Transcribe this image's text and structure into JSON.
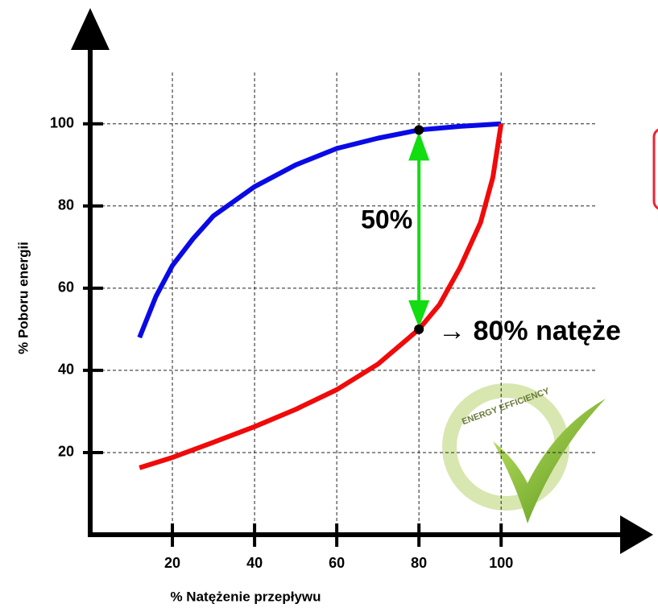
{
  "chart_data": {
    "type": "line",
    "x_label": "% Natężenie przepływu",
    "y_label": "% Poboru energii",
    "xlim": [
      0,
      137
    ],
    "ylim": [
      0,
      127
    ],
    "xticks": [
      20,
      40,
      60,
      80,
      100
    ],
    "yticks": [
      20,
      40,
      60,
      80,
      100
    ],
    "grid": true,
    "series": [
      {
        "color": "#0a0ae6",
        "x": [
          12,
          16,
          20,
          25,
          30,
          40,
          50,
          60,
          70,
          80,
          90,
          100
        ],
        "values": [
          48,
          58,
          65.5,
          72,
          77.6,
          84.7,
          90,
          94,
          96.5,
          98.5,
          99.4,
          100
        ]
      },
      {
        "color": "#f00a0a",
        "x": [
          12,
          20,
          30,
          40,
          50,
          60,
          70,
          80,
          85,
          90,
          95,
          98,
          100
        ],
        "values": [
          16.3,
          18.8,
          22.5,
          26.3,
          30.5,
          35.3,
          41.5,
          50,
          56,
          65,
          76,
          87,
          100
        ]
      }
    ],
    "annotations": [
      {
        "text": "50%",
        "x": 80,
        "y_from": 98.5,
        "y_to": 50
      },
      {
        "text": "→ 80% natęże"
      }
    ],
    "badge": "ENERGY EFFICIENCY"
  }
}
